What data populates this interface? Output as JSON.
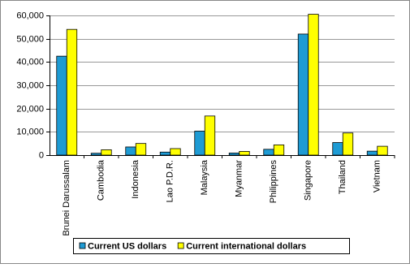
{
  "chart_data": {
    "type": "bar",
    "categories": [
      "Brunei Darussalam",
      "Cambodia",
      "Indonesia",
      "Lao P.D.R.",
      "Malaysia",
      "Myanmar",
      "Philippines",
      "Singapore",
      "Thailand",
      "Vietnam"
    ],
    "series": [
      {
        "name": "Current US dollars",
        "color": "#1e9bd4",
        "values": [
          42500,
          800,
          3500,
          1300,
          10300,
          900,
          2500,
          52000,
          5400,
          1700
        ]
      },
      {
        "name": "Current international dollars",
        "color": "#ffff00",
        "values": [
          54000,
          2300,
          5000,
          2800,
          16800,
          1600,
          4400,
          60500,
          9500,
          3800
        ]
      }
    ],
    "ylim": [
      0,
      60000
    ],
    "yticks": [
      0,
      {
        "value": 10000,
        "label": "10,000"
      },
      {
        "value": 20000,
        "label": "20,000"
      },
      {
        "value": 30000,
        "label": "30,000"
      },
      {
        "value": 40000,
        "label": "40,000"
      },
      {
        "value": 50000,
        "label": "50,000"
      },
      {
        "value": 60000,
        "label": "60,000"
      }
    ],
    "grid": true,
    "legend": "bottom"
  }
}
